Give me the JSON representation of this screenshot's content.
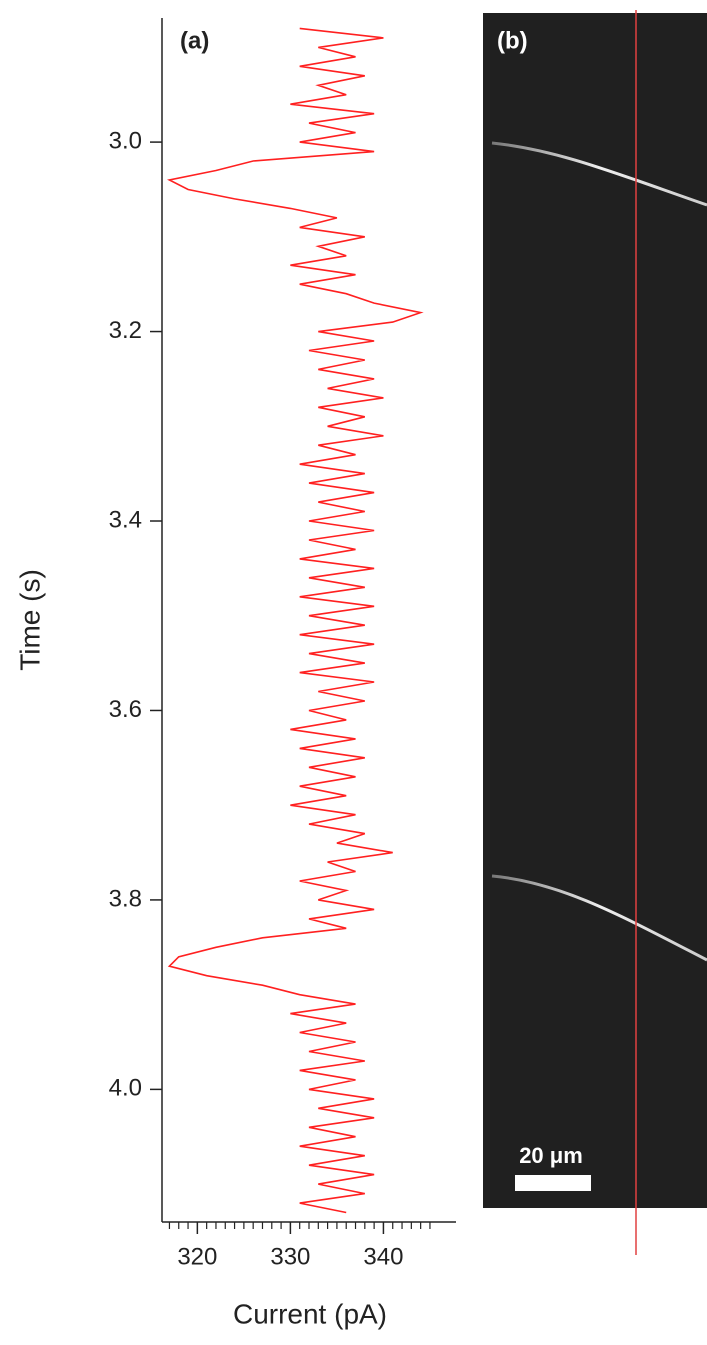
{
  "chart_data": {
    "type": "line",
    "orientation": "vertical",
    "panel_label": "(a)",
    "x_axis_label": "Time (s)",
    "y_axis_label": "Current (pA)",
    "color": "#ff2020",
    "xlim": [
      2.869,
      4.14
    ],
    "xticks": [
      {
        "value": 3,
        "label": "3.0"
      },
      {
        "value": 3.2,
        "label": "3.2"
      },
      {
        "value": 3.4,
        "label": "3.4"
      },
      {
        "value": 3.6,
        "label": "3.6"
      },
      {
        "value": 3.8,
        "label": "3.8"
      },
      {
        "value": 4,
        "label": "4.0"
      }
    ],
    "ylim": [
      316.2,
      347.8
    ],
    "yticks": [
      320,
      330,
      340
    ],
    "yminorticks": [
      317,
      318,
      319,
      321,
      322,
      323,
      324,
      325,
      326,
      327,
      328,
      329,
      331,
      332,
      333,
      334,
      335,
      336,
      337,
      338,
      339,
      341,
      342,
      343,
      344,
      345
    ],
    "x": [
      2.88,
      2.89,
      2.9,
      2.91,
      2.92,
      2.93,
      2.94,
      2.95,
      2.96,
      2.97,
      2.98,
      2.99,
      3.0,
      3.01,
      3.02,
      3.03,
      3.04,
      3.05,
      3.06,
      3.07,
      3.08,
      3.09,
      3.1,
      3.11,
      3.12,
      3.13,
      3.14,
      3.15,
      3.16,
      3.17,
      3.18,
      3.19,
      3.2,
      3.21,
      3.22,
      3.23,
      3.24,
      3.25,
      3.26,
      3.27,
      3.28,
      3.29,
      3.3,
      3.31,
      3.32,
      3.33,
      3.34,
      3.35,
      3.36,
      3.37,
      3.38,
      3.39,
      3.4,
      3.41,
      3.42,
      3.43,
      3.44,
      3.45,
      3.46,
      3.47,
      3.48,
      3.49,
      3.5,
      3.51,
      3.52,
      3.53,
      3.54,
      3.55,
      3.56,
      3.57,
      3.58,
      3.59,
      3.6,
      3.61,
      3.62,
      3.63,
      3.64,
      3.65,
      3.66,
      3.67,
      3.68,
      3.69,
      3.7,
      3.71,
      3.72,
      3.73,
      3.74,
      3.75,
      3.76,
      3.77,
      3.78,
      3.79,
      3.8,
      3.81,
      3.82,
      3.83,
      3.84,
      3.85,
      3.86,
      3.87,
      3.88,
      3.89,
      3.9,
      3.91,
      3.92,
      3.93,
      3.94,
      3.95,
      3.96,
      3.97,
      3.98,
      3.99,
      4.0,
      4.01,
      4.02,
      4.03,
      4.04,
      4.05,
      4.06,
      4.07,
      4.08,
      4.09,
      4.1,
      4.11,
      4.12,
      4.13
    ],
    "values": [
      331,
      340,
      333,
      337,
      331,
      338,
      333,
      336,
      330,
      339,
      332,
      337,
      331,
      339,
      326,
      322,
      317,
      319,
      324,
      330,
      335,
      331,
      338,
      333,
      336,
      330,
      337,
      331,
      336,
      339,
      344,
      341,
      333,
      339,
      332,
      338,
      333,
      339,
      334,
      340,
      333,
      338,
      334,
      340,
      333,
      337,
      331,
      338,
      332,
      339,
      333,
      338,
      332,
      339,
      332,
      337,
      331,
      339,
      332,
      338,
      331,
      339,
      332,
      338,
      331,
      339,
      332,
      338,
      331,
      339,
      333,
      338,
      332,
      336,
      330,
      337,
      331,
      338,
      332,
      337,
      331,
      336,
      330,
      337,
      332,
      338,
      335,
      341,
      334,
      337,
      331,
      336,
      333,
      339,
      332,
      336,
      327,
      322,
      318,
      317,
      321,
      327,
      331,
      337,
      330,
      336,
      331,
      337,
      332,
      338,
      331,
      337,
      332,
      339,
      333,
      339,
      332,
      337,
      331,
      338,
      332,
      339,
      333,
      338,
      331,
      336
    ]
  },
  "image_panel": {
    "panel_label": "(b)",
    "scale_bar_label": "20 μm"
  }
}
